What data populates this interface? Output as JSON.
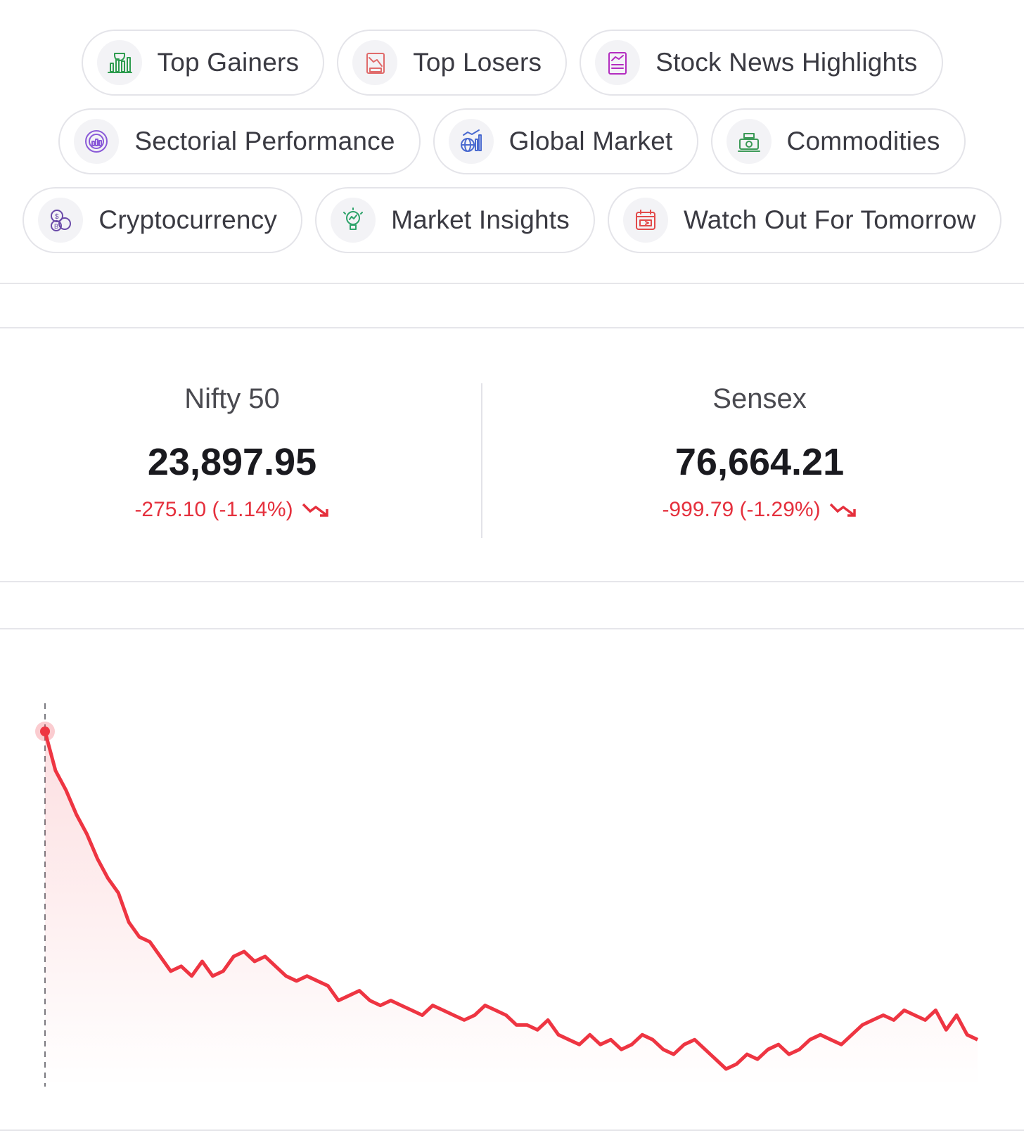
{
  "chips": [
    [
      {
        "label": "Top Gainers",
        "icon": "trophy-chart-icon",
        "color": "#2e9c4f"
      },
      {
        "label": "Top Losers",
        "icon": "loss-chart-icon",
        "color": "#e06b6b"
      },
      {
        "label": "Stock News Highlights",
        "icon": "news-chart-icon",
        "color": "#b32dc0"
      }
    ],
    [
      {
        "label": "Sectorial Performance",
        "icon": "sector-gauge-icon",
        "color": "#8a5ad8"
      },
      {
        "label": "Global Market",
        "icon": "globe-chart-icon",
        "color": "#4a6ad0"
      },
      {
        "label": "Commodities",
        "icon": "commodities-icon",
        "color": "#3d9a58"
      }
    ],
    [
      {
        "label": "Cryptocurrency",
        "icon": "crypto-coins-icon",
        "color": "#6a4aa8"
      },
      {
        "label": "Market Insights",
        "icon": "insights-bulb-icon",
        "color": "#2ea36a"
      },
      {
        "label": "Watch Out For Tomorrow",
        "icon": "calendar-icon",
        "color": "#e24a4a"
      }
    ]
  ],
  "indices": [
    {
      "name": "Nifty 50",
      "value": "23,897.95",
      "change": "-275.10 (-1.14%)"
    },
    {
      "name": "Sensex",
      "value": "76,664.21",
      "change": "-999.79 (-1.29%)"
    }
  ],
  "colors": {
    "negative": "#e5303d",
    "line": "#ee3542"
  },
  "chart_data": {
    "type": "area",
    "series": [
      {
        "values": [
          100,
          92,
          88,
          83,
          79,
          74,
          70,
          67,
          61,
          58,
          57,
          54,
          51,
          52,
          50,
          53,
          50,
          51,
          54,
          55,
          53,
          54,
          52,
          50,
          49,
          50,
          49,
          48,
          45,
          46,
          47,
          45,
          44,
          45,
          44,
          43,
          42,
          44,
          43,
          42,
          41,
          42,
          44,
          43,
          42,
          40,
          40,
          39,
          41,
          38,
          37,
          36,
          38,
          36,
          37,
          35,
          36,
          38,
          37,
          35,
          34,
          36,
          37,
          35,
          33,
          31,
          32,
          34,
          33,
          35,
          36,
          34,
          35,
          37,
          38,
          37,
          36,
          38,
          40,
          41,
          42,
          41,
          43,
          42,
          41,
          43,
          39,
          42,
          38,
          37
        ]
      }
    ]
  }
}
